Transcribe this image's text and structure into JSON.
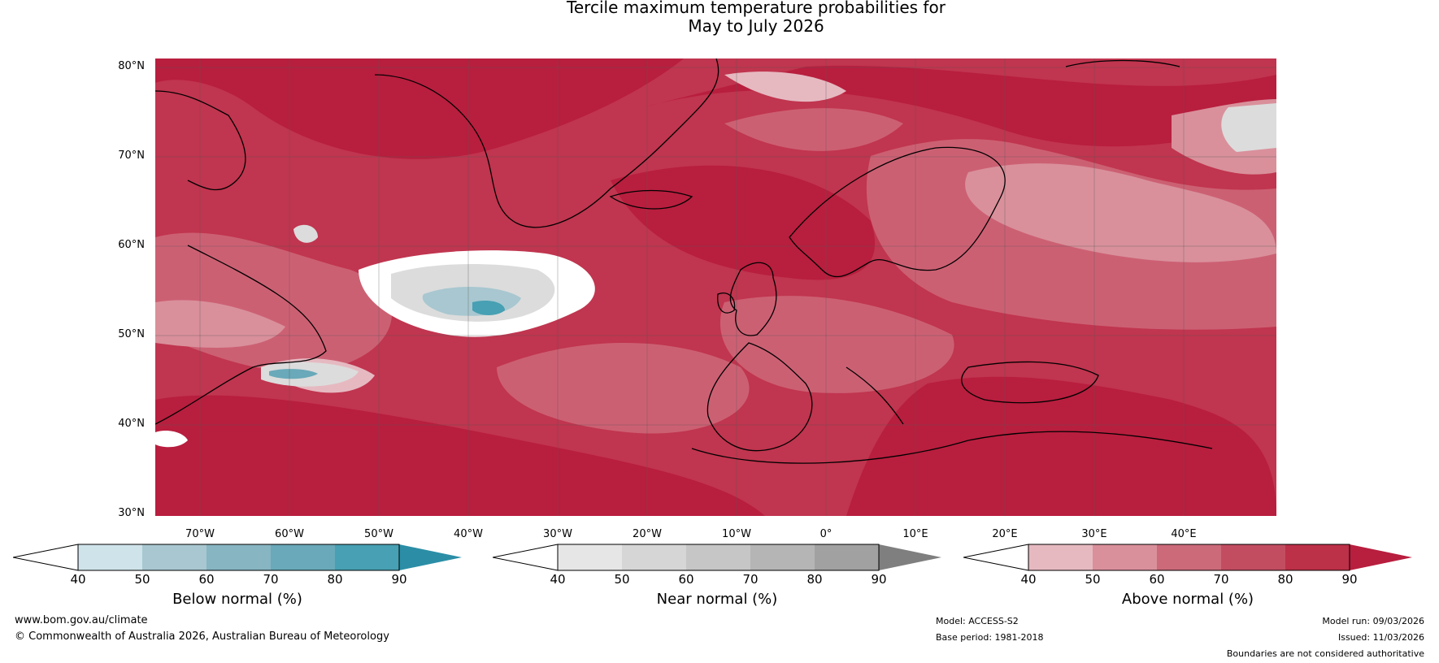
{
  "title": {
    "line1": "Tercile maximum temperature probabilities for",
    "line2": "May to July 2026"
  },
  "map": {
    "latitude_labels": [
      "80°N",
      "70°N",
      "60°N",
      "50°N",
      "40°N",
      "30°N"
    ],
    "longitude_labels": [
      "70°W",
      "60°W",
      "50°W",
      "40°W",
      "30°W",
      "20°W",
      "10°W",
      "0°",
      "10°E",
      "20°E",
      "30°E",
      "40°E"
    ],
    "colors": {
      "above_darkest": "#b81e3e",
      "above_dark": "#c0354f",
      "above_mid": "#cc6073",
      "above_light": "#d9909b",
      "above_lightest": "#e6b9c1",
      "near": "#dcdcdc",
      "below": "#8fbfcc"
    }
  },
  "colorbars": [
    {
      "label": "Below normal (%)",
      "ticks": [
        "40",
        "50",
        "60",
        "70",
        "80",
        "90"
      ],
      "colors": [
        "#cfe3ea",
        "#a8c7d0",
        "#87b5c2",
        "#69a9b9",
        "#47a0b3",
        "#2b8ea6"
      ]
    },
    {
      "label": "Near normal (%)",
      "ticks": [
        "40",
        "50",
        "60",
        "70",
        "80",
        "90"
      ],
      "colors": [
        "#e6e6e6",
        "#d6d6d6",
        "#c6c6c6",
        "#b5b5b5",
        "#a1a1a1",
        "#7f7f7f"
      ]
    },
    {
      "label": "Above normal (%)",
      "ticks": [
        "40",
        "50",
        "60",
        "70",
        "80",
        "90"
      ],
      "colors": [
        "#e6b9c1",
        "#d9909b",
        "#cc6a7a",
        "#c24d61",
        "#bc3048",
        "#b81e3e"
      ]
    }
  ],
  "footer": {
    "url": "www.bom.gov.au/climate",
    "copyright": "© Commonwealth of Australia 2026, Australian Bureau of Meteorology",
    "model": "Model: ACCESS-S2",
    "base_period": "Base period: 1981-2018",
    "model_run": "Model run: 09/03/2026",
    "issued": "Issued: 11/03/2026",
    "disclaimer": "Boundaries are not considered authoritative"
  }
}
